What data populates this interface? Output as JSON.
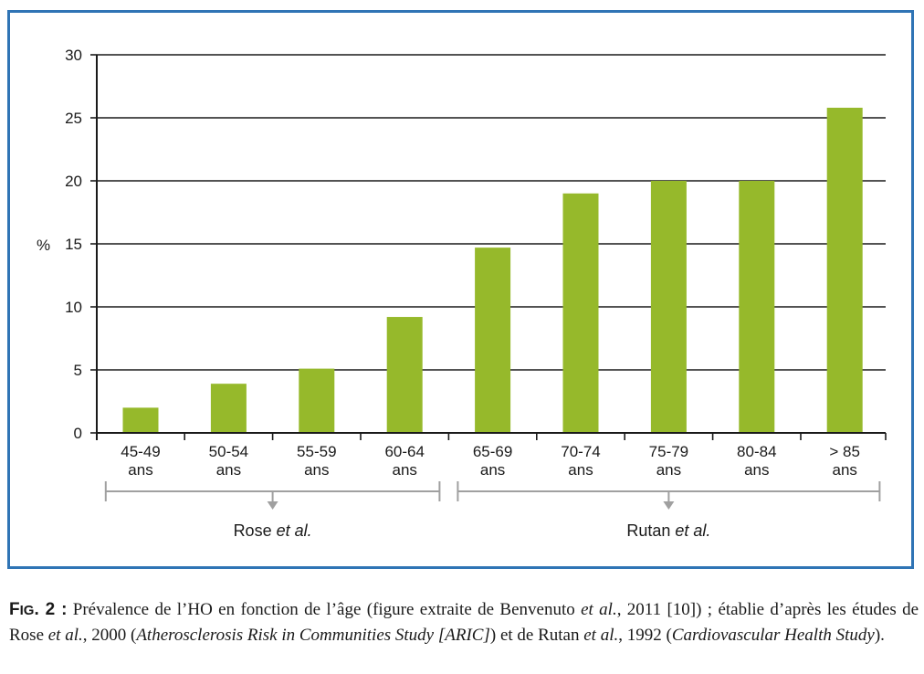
{
  "chart_data": {
    "type": "bar",
    "ylabel": "%",
    "ylim": [
      0,
      30
    ],
    "yticks": [
      0,
      5,
      10,
      15,
      20,
      25,
      30
    ],
    "grid": true,
    "categories": [
      [
        "45-49",
        "ans"
      ],
      [
        "50-54",
        "ans"
      ],
      [
        "55-59",
        "ans"
      ],
      [
        "60-64",
        "ans"
      ],
      [
        "65-69",
        "ans"
      ],
      [
        "70-74",
        "ans"
      ],
      [
        "75-79",
        "ans"
      ],
      [
        "80-84",
        "ans"
      ],
      [
        "> 85",
        "ans"
      ]
    ],
    "values": [
      2.0,
      3.9,
      5.1,
      9.2,
      14.7,
      19.0,
      20.0,
      20.0,
      25.8
    ],
    "bar_color": "#96b92b",
    "groups": [
      {
        "name": "Rose",
        "name_italic": "et al.",
        "from": 0,
        "to": 3
      },
      {
        "name": "Rutan",
        "name_italic": "et al.",
        "from": 4,
        "to": 8
      }
    ]
  },
  "caption": {
    "fig_label_prefix": "F",
    "fig_label_small": "IG",
    "fig_label_rest": ". 2 :",
    "text1": " Prévalence de l’HO en fonction de l’âge (figure extraite de Benvenuto ",
    "etal1": "et al.",
    "text2": ", 2011 [10]) ; établie d’après les études de Rose ",
    "etal2": "et al.",
    "text3": ", 2000 (",
    "study1": "Atherosclerosis Risk in Communities Study [ARIC]",
    "text4": ") et de Rutan ",
    "etal3": "et al.",
    "text5": ", 1992 (",
    "study2": "Cardiovascular Health Study",
    "text6": ")."
  },
  "colors": {
    "frame": "#2f74b5",
    "bar": "#96b92b",
    "bracket": "#a0a0a0"
  }
}
